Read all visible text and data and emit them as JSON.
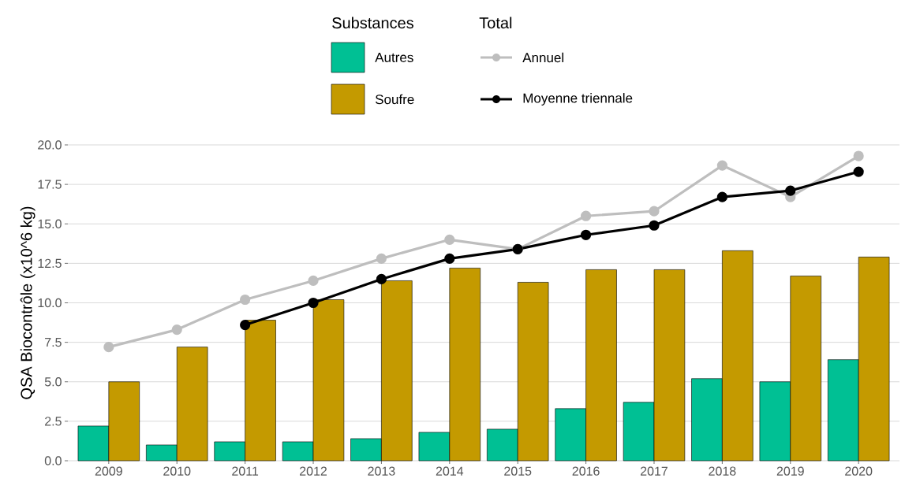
{
  "chart_data": {
    "type": "bar",
    "ylabel": "QSA Biocontrôle (x10^6 kg)",
    "legend_title": "Substances",
    "annotations": [
      "Total"
    ],
    "categories": [
      "2009",
      "2010",
      "2011",
      "2012",
      "2013",
      "2014",
      "2015",
      "2016",
      "2017",
      "2018",
      "2019",
      "2020"
    ],
    "series": [
      {
        "name": "Autres",
        "color": "#00c094",
        "values": [
          2.2,
          1.0,
          1.2,
          1.2,
          1.4,
          1.8,
          2.0,
          3.3,
          3.7,
          5.2,
          5.0,
          6.4
        ]
      },
      {
        "name": "Soufre",
        "color": "#c49a00",
        "values": [
          5.0,
          7.2,
          8.9,
          10.2,
          11.4,
          12.2,
          11.3,
          12.1,
          12.1,
          13.3,
          11.7,
          12.9
        ]
      },
      {
        "name": "Annuel",
        "type": "line",
        "color": "#bebebe",
        "values": [
          7.2,
          8.3,
          10.2,
          11.4,
          12.8,
          14.0,
          13.4,
          15.5,
          15.8,
          18.7,
          16.7,
          19.3
        ]
      },
      {
        "name": "Moyenne triennale",
        "type": "line",
        "color": "#000000",
        "values": [
          null,
          null,
          8.6,
          10.0,
          11.5,
          12.8,
          13.4,
          14.3,
          14.9,
          16.7,
          17.1,
          18.3
        ]
      }
    ],
    "ylim": [
      0,
      20
    ],
    "yticks": [
      {
        "value": 0,
        "label": "0.0"
      },
      2.5,
      {
        "value": 5,
        "label": "5.0"
      },
      7.5,
      {
        "value": 10,
        "label": "10.0"
      },
      12.5,
      {
        "value": 15,
        "label": "15.0"
      },
      17.5,
      {
        "value": 20,
        "label": "20.0"
      }
    ],
    "grid": "y",
    "legend": "top",
    "marker": "circle",
    "line_style": "solid"
  }
}
